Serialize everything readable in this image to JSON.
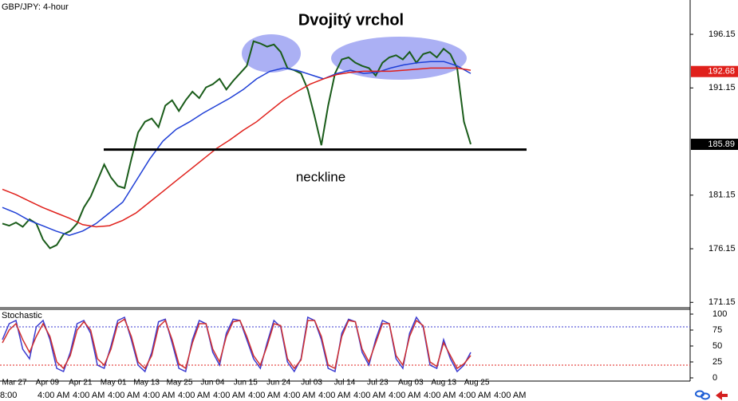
{
  "chart_data": [
    {
      "type": "line",
      "title": "Dvojitý vrchol",
      "symbol": "GBP/JPY: 4-hour",
      "annotation": "neckline",
      "neckline": 185.4,
      "ylim": [
        170.65,
        199.35
      ],
      "yticks": [
        196.15,
        191.15,
        181.15,
        176.15,
        171.15
      ],
      "price_labels": [
        {
          "value": 192.68,
          "color": "#e0201b"
        },
        {
          "value": 185.89,
          "color": "#000000"
        }
      ],
      "series": [
        {
          "color": "#1a5c1a",
          "values": [
            178.5,
            178.3,
            178.6,
            178.2,
            178.9,
            178.5,
            177.0,
            176.2,
            176.5,
            177.5,
            177.8,
            178.5,
            180.0,
            181.0,
            182.5,
            184.0,
            182.8,
            182.0,
            181.8,
            184.5,
            187.0,
            188.0,
            188.3,
            187.5,
            189.5,
            190.0,
            189.0,
            190.0,
            190.8,
            190.2,
            191.2,
            191.5,
            192.0,
            191.0,
            191.8,
            192.5,
            193.2,
            195.5,
            195.3,
            195.0,
            195.2,
            194.5,
            193.0,
            192.8,
            192.5,
            191.0,
            188.5,
            185.8,
            189.5,
            192.5,
            193.8,
            194.0,
            193.5,
            193.2,
            193.0,
            192.3,
            193.5,
            194.0,
            194.2,
            193.8,
            194.5,
            193.5,
            194.3,
            194.5,
            194.0,
            194.8,
            194.3,
            193.0,
            188.0,
            185.9
          ]
        },
        {
          "color": "#1f3fd6",
          "values": [
            180.0,
            179.5,
            178.8,
            178.3,
            177.8,
            177.4,
            177.8,
            178.5,
            179.5,
            180.5,
            182.5,
            184.5,
            186.2,
            187.3,
            188.0,
            188.8,
            189.5,
            190.2,
            191.0,
            192.0,
            192.7,
            193.0,
            192.8,
            192.4,
            192.0,
            192.5,
            192.8,
            192.5,
            192.6,
            193.0,
            193.3,
            193.5,
            193.6,
            193.6,
            193.2,
            192.5
          ]
        },
        {
          "color": "#e0201b",
          "values": [
            181.7,
            181.2,
            180.6,
            180.0,
            179.5,
            179.0,
            178.4,
            178.2,
            178.3,
            178.8,
            179.5,
            180.5,
            181.5,
            182.5,
            183.5,
            184.5,
            185.5,
            186.3,
            187.2,
            188.0,
            189.0,
            190.0,
            190.8,
            191.5,
            192.0,
            192.4,
            192.6,
            192.7,
            192.7,
            192.7,
            192.8,
            192.9,
            193.0,
            193.0,
            193.0,
            192.8
          ]
        }
      ]
    },
    {
      "type": "line",
      "title": "Stochastic",
      "ylim": [
        -5,
        107.5
      ],
      "yticks": [
        100,
        75,
        50,
        25,
        0
      ],
      "levels": [
        {
          "value": 80,
          "color": "#3a3ad0"
        },
        {
          "value": 20,
          "color": "#e0201b"
        }
      ],
      "x_tick_labels": [
        "Mar 27",
        "Apr 09",
        "Apr 21",
        "May 01",
        "May 13",
        "May 25",
        "Jun 04",
        "Jun 15",
        "Jun 24",
        "Jul 03",
        "Jul 14",
        "Jul 23",
        "Aug 03",
        "Aug 13",
        "Aug 25"
      ],
      "x_tick_sublabels": [
        "8:00",
        "4:00 AM",
        "4:00 AM",
        "4:00 AM",
        "4:00 AM",
        "4:00 AM",
        "4:00 AM",
        "4:00 AM",
        "4:00 AM",
        "4:00 AM",
        "4:00 AM",
        "4:00 AM",
        "4:00 AM",
        "4:00 AM",
        "4:00 AM"
      ],
      "series": [
        {
          "color": "#3a3ad0",
          "values": [
            60,
            85,
            90,
            45,
            30,
            80,
            90,
            60,
            15,
            10,
            40,
            85,
            90,
            70,
            20,
            15,
            50,
            90,
            95,
            60,
            20,
            10,
            40,
            88,
            92,
            55,
            15,
            10,
            60,
            90,
            85,
            40,
            20,
            70,
            92,
            90,
            60,
            30,
            15,
            55,
            90,
            80,
            25,
            10,
            30,
            95,
            90,
            60,
            15,
            10,
            70,
            92,
            88,
            40,
            20,
            60,
            90,
            85,
            30,
            15,
            70,
            95,
            80,
            20,
            15,
            60,
            30,
            10,
            20,
            40
          ]
        },
        {
          "color": "#d03030",
          "values": [
            55,
            75,
            85,
            60,
            40,
            65,
            85,
            65,
            25,
            15,
            35,
            75,
            88,
            75,
            30,
            20,
            45,
            85,
            92,
            65,
            25,
            15,
            35,
            80,
            90,
            60,
            22,
            15,
            55,
            85,
            85,
            45,
            25,
            65,
            88,
            90,
            65,
            35,
            20,
            50,
            85,
            82,
            30,
            15,
            28,
            90,
            90,
            65,
            20,
            15,
            65,
            90,
            88,
            45,
            25,
            55,
            85,
            85,
            35,
            20,
            65,
            90,
            82,
            25,
            18,
            55,
            35,
            15,
            22,
            35
          ]
        }
      ]
    }
  ]
}
